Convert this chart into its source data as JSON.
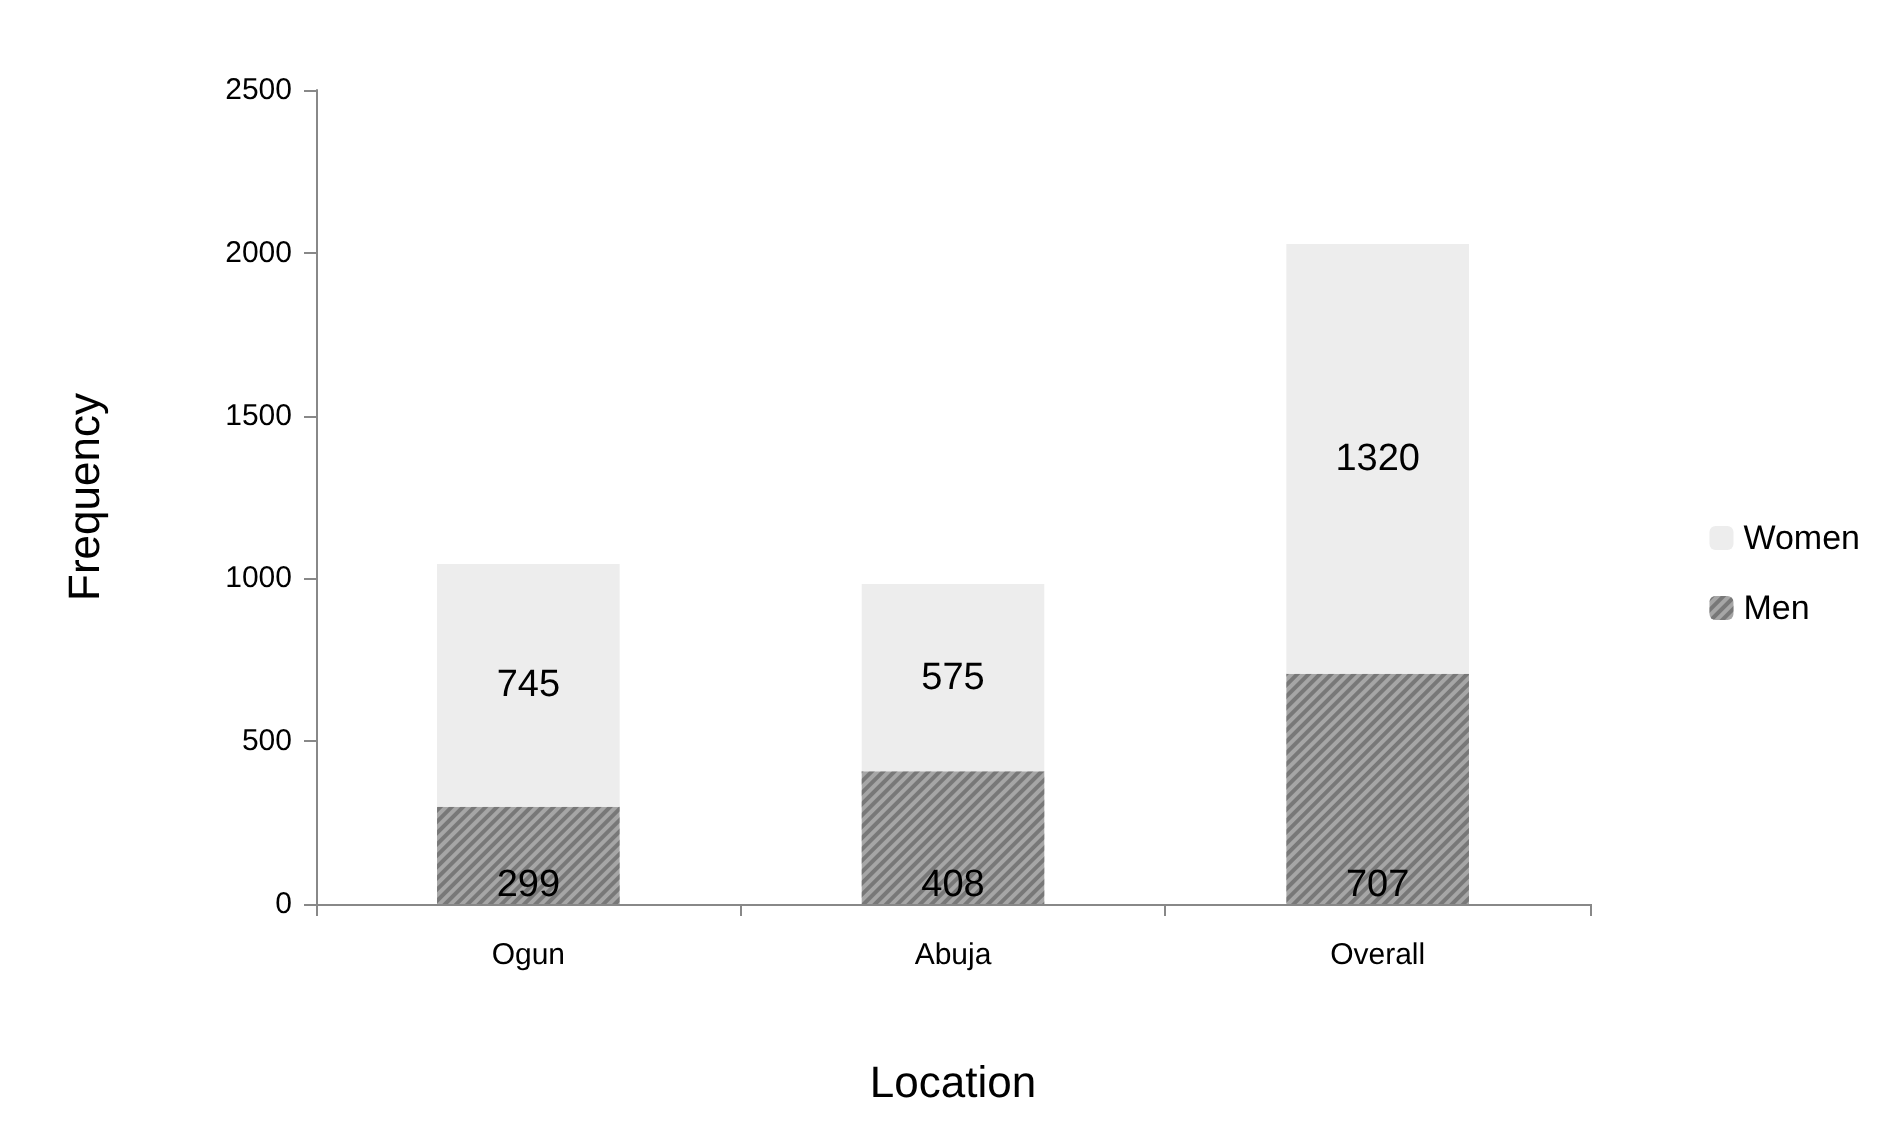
{
  "chart_data": {
    "type": "bar",
    "stacked": true,
    "xlabel": "Location",
    "ylabel": "Frequency",
    "categories": [
      "Ogun",
      "Abuja",
      "Overall"
    ],
    "series": [
      {
        "name": "Men",
        "color": "#a6a6a6",
        "values": [
          299,
          408,
          707
        ]
      },
      {
        "name": "Women",
        "color": "#ededed",
        "values": [
          745,
          575,
          1320
        ]
      }
    ],
    "ylim": [
      0,
      2500
    ],
    "yticks": [
      0,
      500,
      1000,
      1500,
      2000,
      2500
    ],
    "grid": false,
    "legend": "right",
    "data_labels": true
  }
}
